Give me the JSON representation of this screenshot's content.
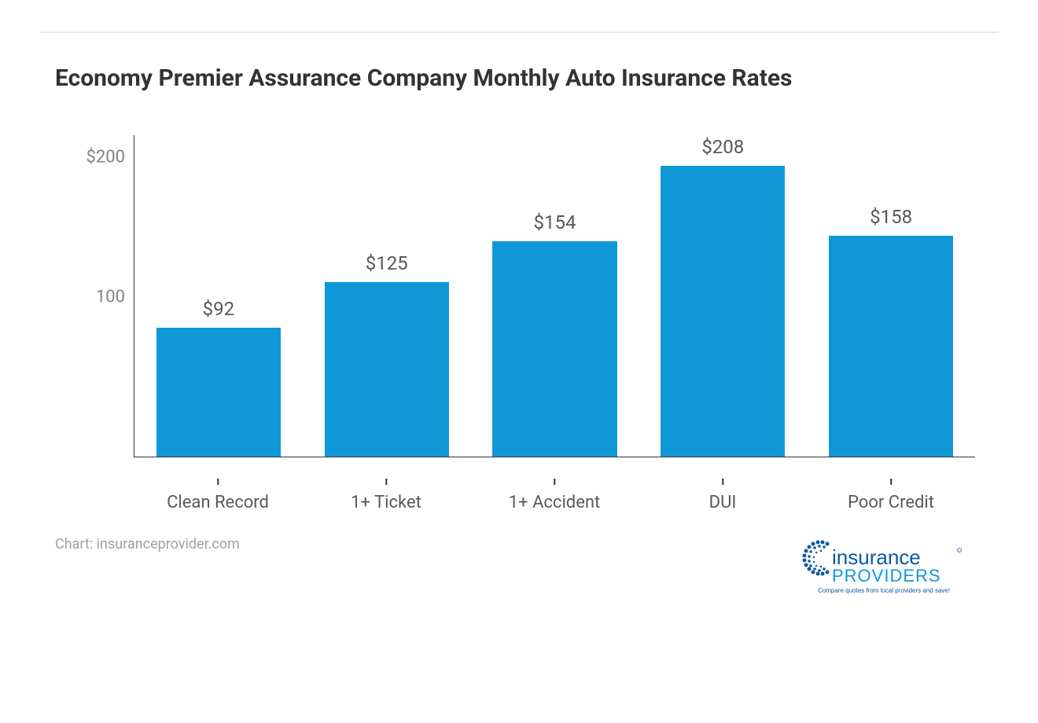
{
  "title": "Economy Premier Assurance Company Monthly Auto Insurance Rates",
  "chart": {
    "type": "bar",
    "categories": [
      "Clean Record",
      "1+ Ticket",
      "1+ Accident",
      "DUI",
      "Poor Credit"
    ],
    "values": [
      92,
      125,
      154,
      208,
      158
    ],
    "value_labels": [
      "$92",
      "$125",
      "$154",
      "$208",
      "$158"
    ],
    "bar_color": "#0f98d8",
    "ylim": [
      0,
      230
    ],
    "yticks": [
      {
        "value": 100,
        "label": "100"
      },
      {
        "value": 200,
        "label": "$200"
      }
    ],
    "background_color": "#ffffff",
    "axis_color": "#333333",
    "bar_width_pct": 74,
    "title_fontsize": 30,
    "title_color": "#333333",
    "label_fontsize": 22,
    "label_color": "#58595b",
    "value_label_fontsize": 24,
    "tick_label_color": "#808285"
  },
  "source": "Chart: insuranceprovider.com",
  "logo": {
    "text_main": "insurance",
    "text_sub": "PROVIDERS",
    "tagline": "Compare quotes from local providers and save!",
    "dot_color": "#0d5a9e",
    "main_color": "#0d5a9e",
    "sub_color": "#0f98d8",
    "tagline_color": "#0d5a9e"
  }
}
